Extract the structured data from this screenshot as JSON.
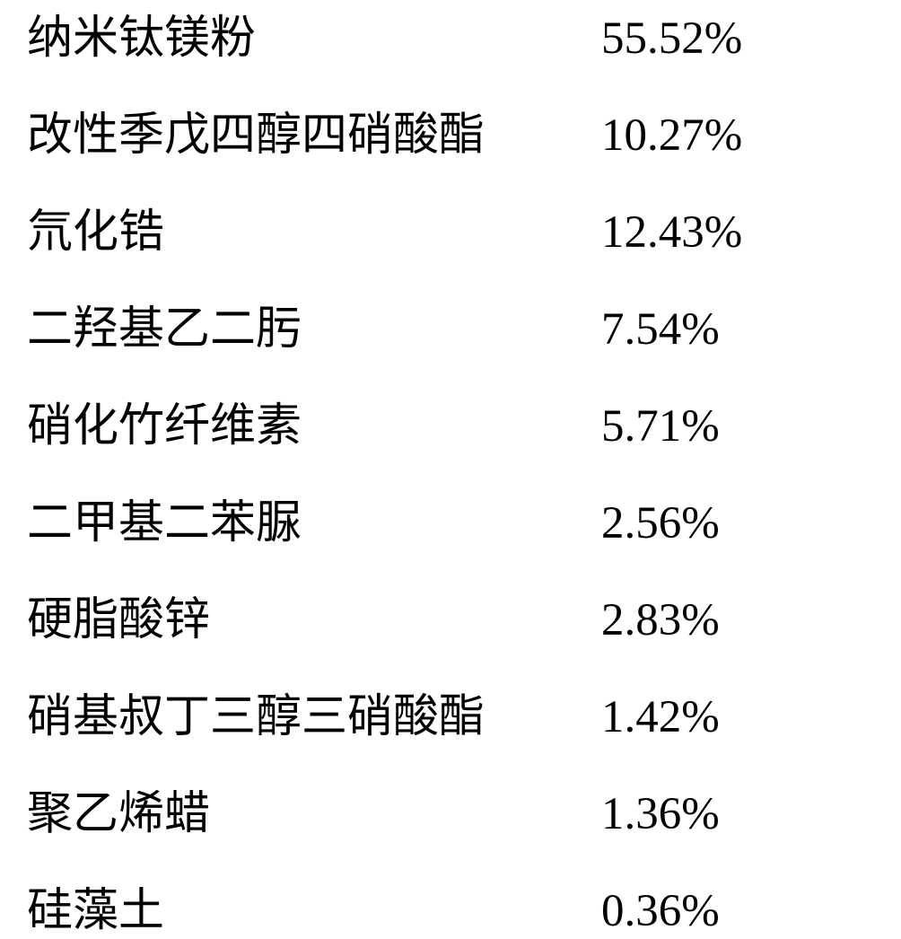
{
  "composition": {
    "rows": [
      {
        "name": "纳米钛镁粉",
        "percentage": "55.52%"
      },
      {
        "name": "改性季戊四醇四硝酸酯",
        "percentage": "10.27%"
      },
      {
        "name": "氘化锆",
        "percentage": "12.43%"
      },
      {
        "name": "二羟基乙二肟",
        "percentage": "7.54%"
      },
      {
        "name": "硝化竹纤维素",
        "percentage": "5.71%"
      },
      {
        "name": "二甲基二苯脲",
        "percentage": "2.56%"
      },
      {
        "name": "硬脂酸锌",
        "percentage": "2.83%"
      },
      {
        "name": "硝基叔丁三醇三硝酸酯",
        "percentage": "1.42%"
      },
      {
        "name": "聚乙烯蜡",
        "percentage": "1.36%"
      },
      {
        "name": "硅藻土",
        "percentage": "0.36%"
      }
    ],
    "text_color": "#000000",
    "background_color": "#ffffff",
    "fontsize": 51,
    "name_column_width": 640,
    "row_spacing": 34
  }
}
